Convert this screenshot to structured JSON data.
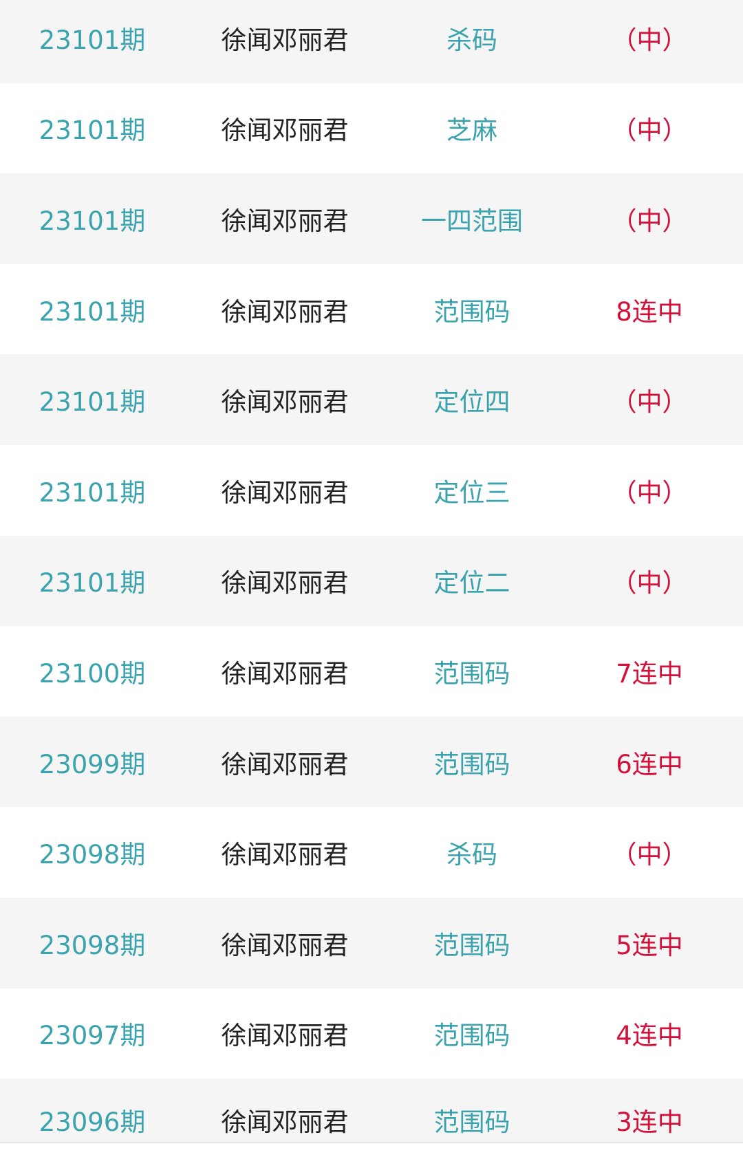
{
  "colors": {
    "issue": "#3aa3ad",
    "author": "#222222",
    "type": "#3aa3ad",
    "result": "#d3123b",
    "stripe": "#f5f5f5"
  },
  "rows": [
    {
      "issue": "23101期",
      "author": "徐闻邓丽君",
      "type": "杀码",
      "result": "（中）"
    },
    {
      "issue": "23101期",
      "author": "徐闻邓丽君",
      "type": "芝麻",
      "result": "（中）"
    },
    {
      "issue": "23101期",
      "author": "徐闻邓丽君",
      "type": "一四范围",
      "result": "（中）"
    },
    {
      "issue": "23101期",
      "author": "徐闻邓丽君",
      "type": "范围码",
      "result": "8连中"
    },
    {
      "issue": "23101期",
      "author": "徐闻邓丽君",
      "type": "定位四",
      "result": "（中）"
    },
    {
      "issue": "23101期",
      "author": "徐闻邓丽君",
      "type": "定位三",
      "result": "（中）"
    },
    {
      "issue": "23101期",
      "author": "徐闻邓丽君",
      "type": "定位二",
      "result": "（中）"
    },
    {
      "issue": "23100期",
      "author": "徐闻邓丽君",
      "type": "范围码",
      "result": "7连中"
    },
    {
      "issue": "23099期",
      "author": "徐闻邓丽君",
      "type": "范围码",
      "result": "6连中"
    },
    {
      "issue": "23098期",
      "author": "徐闻邓丽君",
      "type": "杀码",
      "result": "（中）"
    },
    {
      "issue": "23098期",
      "author": "徐闻邓丽君",
      "type": "范围码",
      "result": "5连中"
    },
    {
      "issue": "23097期",
      "author": "徐闻邓丽君",
      "type": "范围码",
      "result": "4连中"
    },
    {
      "issue": "23096期",
      "author": "徐闻邓丽君",
      "type": "范围码",
      "result": "3连中"
    }
  ]
}
